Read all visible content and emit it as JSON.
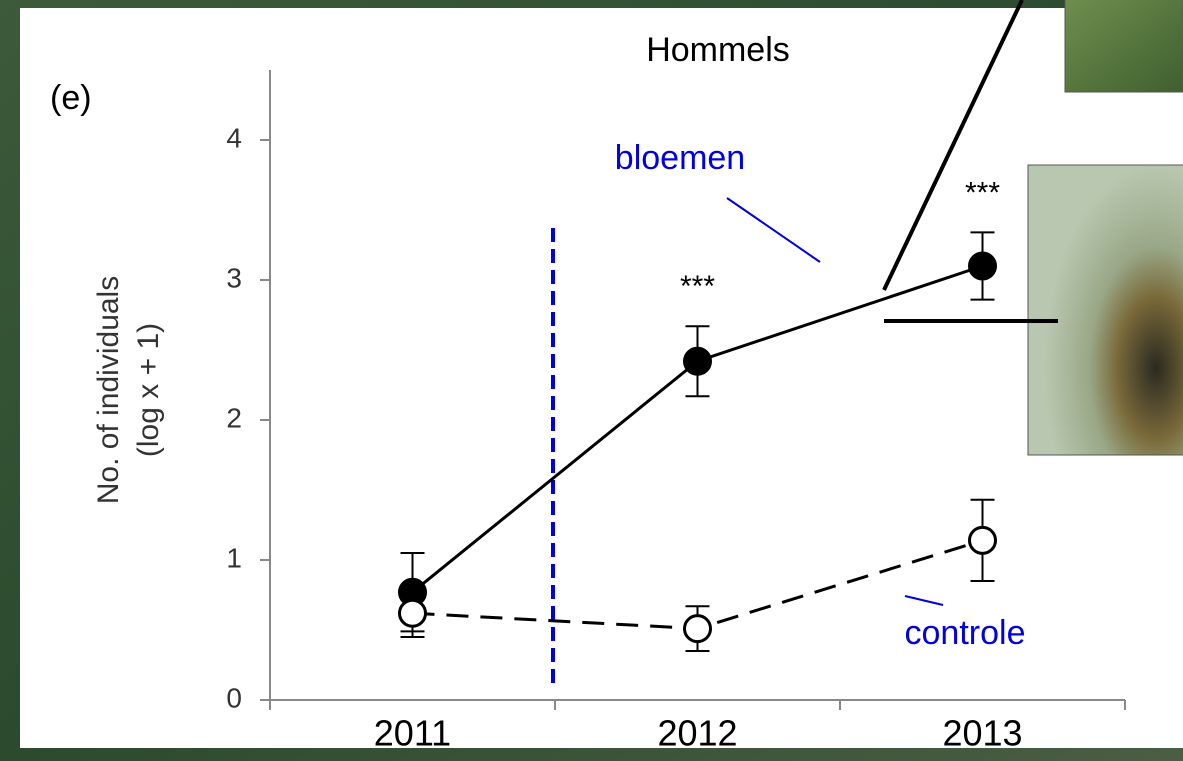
{
  "chart_data": {
    "type": "line",
    "panel": "(e)",
    "title": "Hommels",
    "ylabel": [
      "No. of individuals",
      "(log x + 1)"
    ],
    "categories": [
      "2011",
      "2012",
      "2013"
    ],
    "series": [
      {
        "name": "bloemen",
        "color": "#000000",
        "dashed": false,
        "filled": true,
        "values": [
          0.77,
          2.42,
          3.1
        ],
        "errors": [
          0.28,
          0.25,
          0.24
        ]
      },
      {
        "name": "controle",
        "color": "#000000",
        "dashed": true,
        "filled": false,
        "values": [
          0.62,
          0.51,
          1.14
        ],
        "errors": [
          0.17,
          0.16,
          0.29
        ]
      }
    ],
    "significance": [
      null,
      "***",
      "***"
    ],
    "ylim": [
      0,
      4.5
    ],
    "yticks": [
      0,
      1,
      2,
      3,
      4
    ],
    "label_color": "#0000e0"
  }
}
